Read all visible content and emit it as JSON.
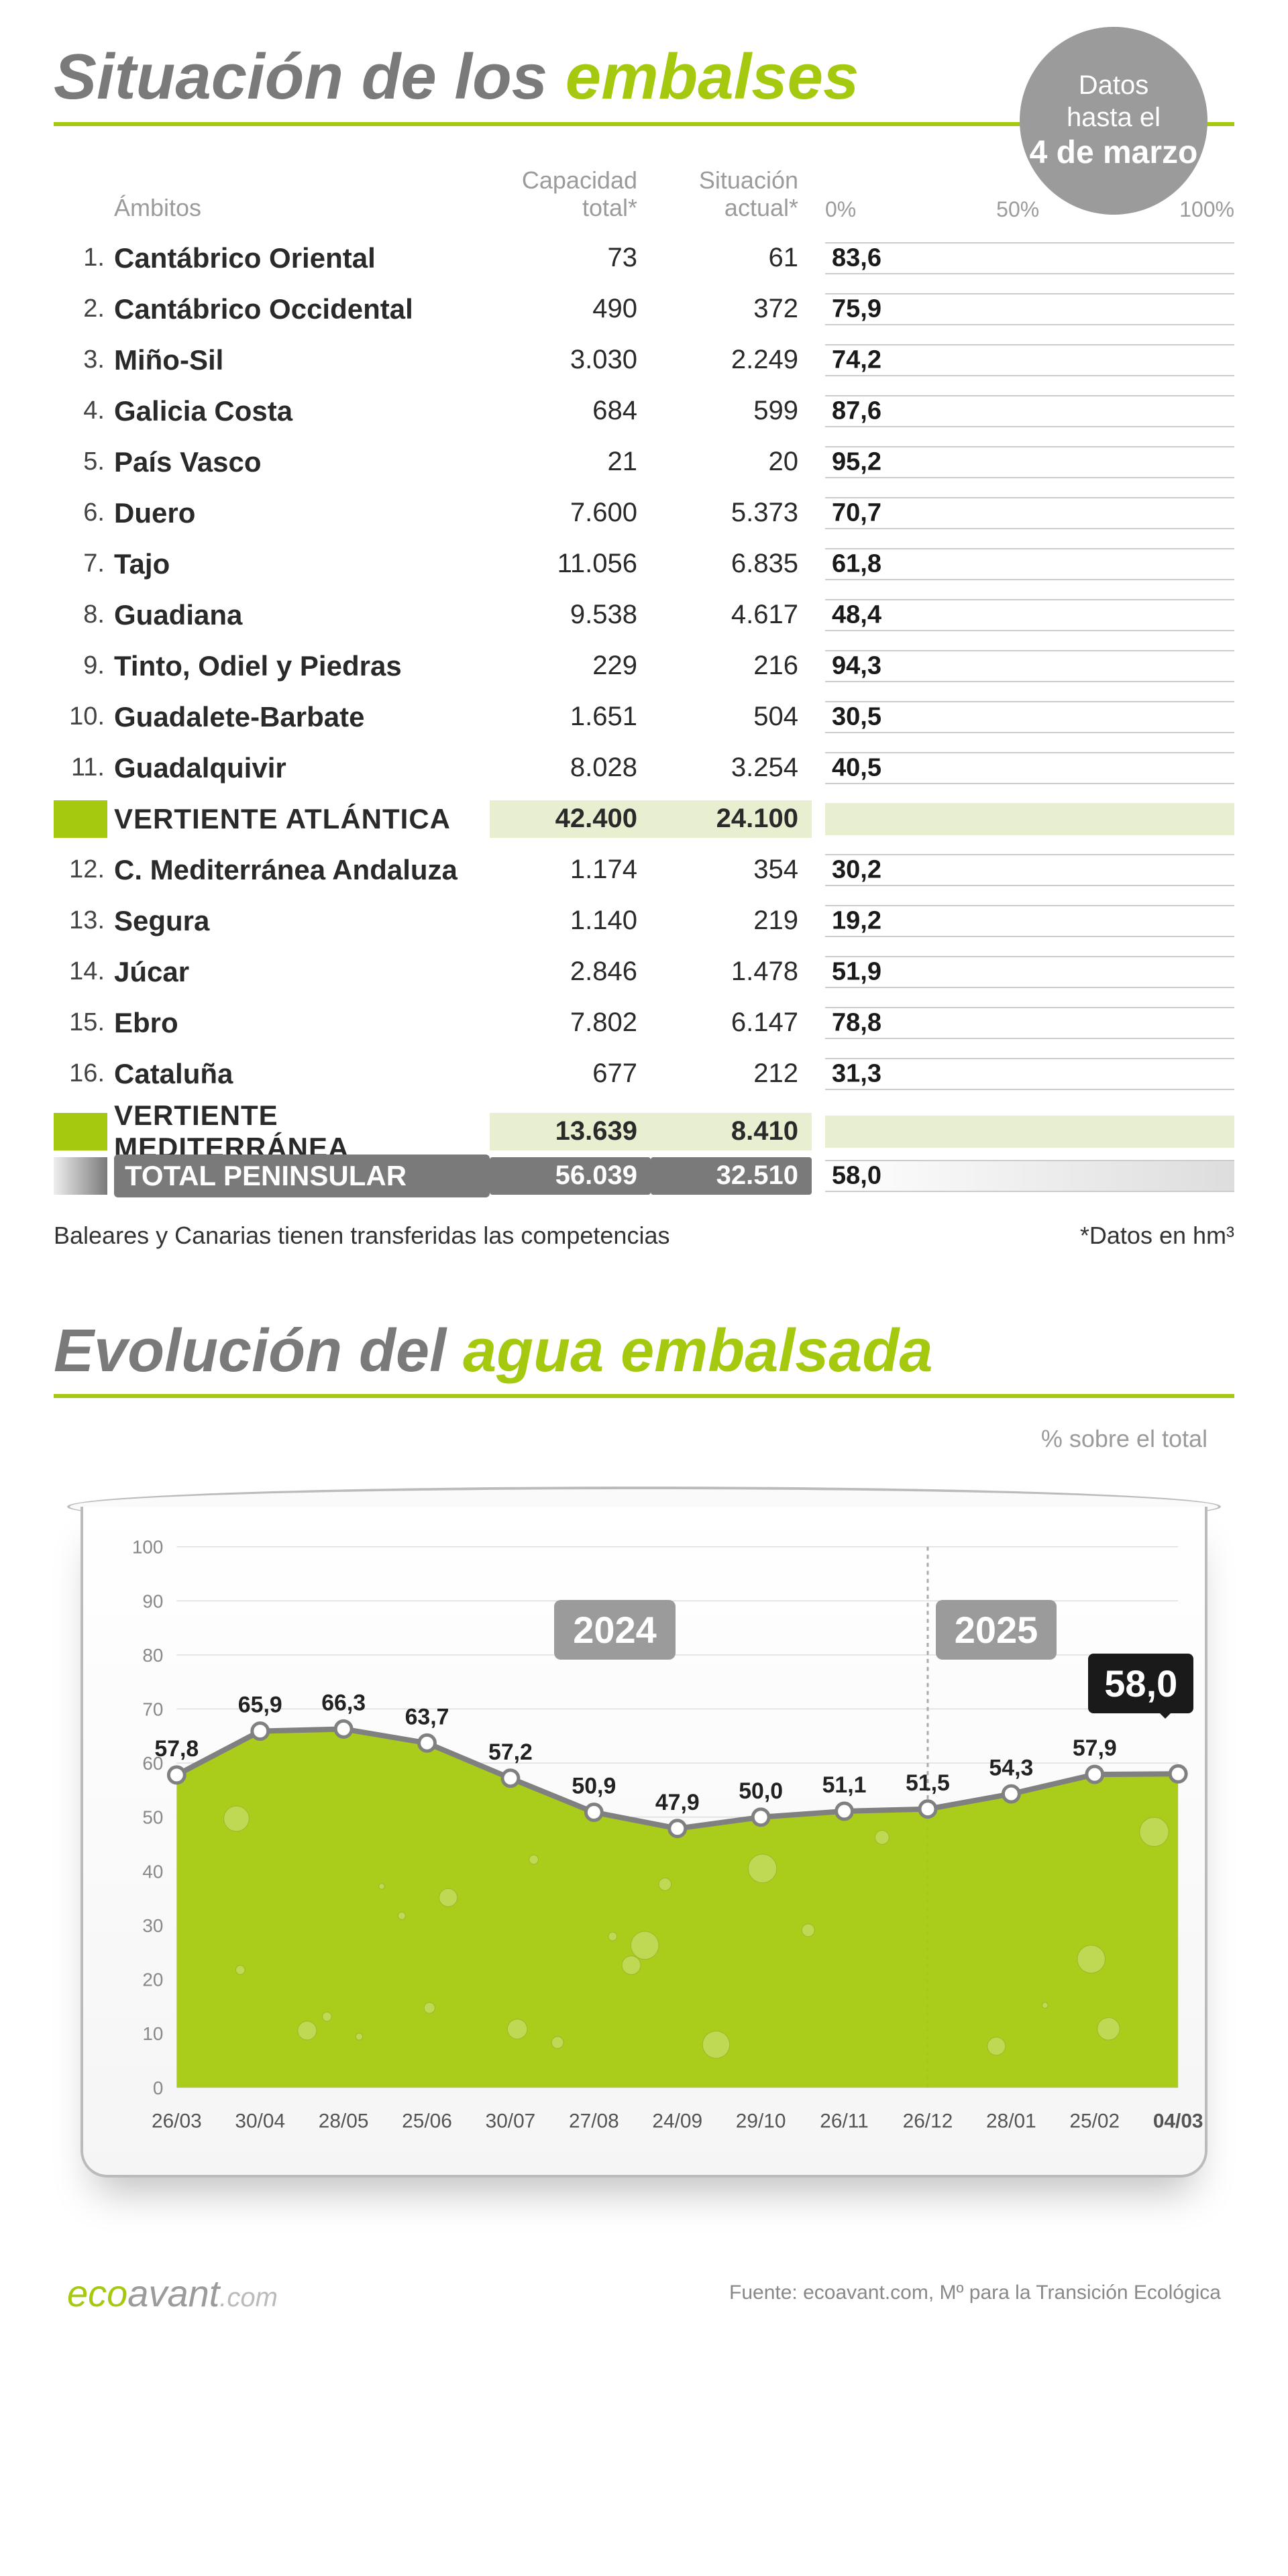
{
  "title": {
    "prefix": "Situación de los ",
    "accent": "embalses"
  },
  "badge": {
    "line1": "Datos",
    "line2": "hasta el",
    "date": "4 de marzo"
  },
  "columns": {
    "ambitos": "Ámbitos",
    "capacidad": "Capacidad total*",
    "situacion": "Situación actual*"
  },
  "axis": {
    "p0": "0%",
    "p50": "50%",
    "p100": "100%"
  },
  "rows": [
    {
      "n": "1.",
      "name": "Cantábrico Oriental",
      "cap": "73",
      "sit": "61",
      "pct": 83.6,
      "pct_label": "83,6"
    },
    {
      "n": "2.",
      "name": "Cantábrico Occidental",
      "cap": "490",
      "sit": "372",
      "pct": 75.9,
      "pct_label": "75,9"
    },
    {
      "n": "3.",
      "name": "Miño-Sil",
      "cap": "3.030",
      "sit": "2.249",
      "pct": 74.2,
      "pct_label": "74,2"
    },
    {
      "n": "4.",
      "name": "Galicia Costa",
      "cap": "684",
      "sit": "599",
      "pct": 87.6,
      "pct_label": "87,6"
    },
    {
      "n": "5.",
      "name": "País Vasco",
      "cap": "21",
      "sit": "20",
      "pct": 95.2,
      "pct_label": "95,2"
    },
    {
      "n": "6.",
      "name": "Duero",
      "cap": "7.600",
      "sit": "5.373",
      "pct": 70.7,
      "pct_label": "70,7"
    },
    {
      "n": "7.",
      "name": "Tajo",
      "cap": "11.056",
      "sit": "6.835",
      "pct": 61.8,
      "pct_label": "61,8"
    },
    {
      "n": "8.",
      "name": "Guadiana",
      "cap": "9.538",
      "sit": "4.617",
      "pct": 48.4,
      "pct_label": "48,4"
    },
    {
      "n": "9.",
      "name": "Tinto, Odiel y Piedras",
      "cap": "229",
      "sit": "216",
      "pct": 94.3,
      "pct_label": "94,3"
    },
    {
      "n": "10.",
      "name": "Guadalete-Barbate",
      "cap": "1.651",
      "sit": "504",
      "pct": 30.5,
      "pct_label": "30,5"
    },
    {
      "n": "11.",
      "name": "Guadalquivir",
      "cap": "8.028",
      "sit": "3.254",
      "pct": 40.5,
      "pct_label": "40,5"
    }
  ],
  "subtotal1": {
    "name": "VERTIENTE ATLÁNTICA",
    "cap": "42.400",
    "sit": "24.100"
  },
  "rows2": [
    {
      "n": "12.",
      "name": "C. Mediterránea Andaluza",
      "cap": "1.174",
      "sit": "354",
      "pct": 30.2,
      "pct_label": "30,2"
    },
    {
      "n": "13.",
      "name": "Segura",
      "cap": "1.140",
      "sit": "219",
      "pct": 19.2,
      "pct_label": "19,2"
    },
    {
      "n": "14.",
      "name": "Júcar",
      "cap": "2.846",
      "sit": "1.478",
      "pct": 51.9,
      "pct_label": "51,9"
    },
    {
      "n": "15.",
      "name": "Ebro",
      "cap": "7.802",
      "sit": "6.147",
      "pct": 78.8,
      "pct_label": "78,8"
    },
    {
      "n": "16.",
      "name": "Cataluña",
      "cap": "677",
      "sit": "212",
      "pct": 31.3,
      "pct_label": "31,3"
    }
  ],
  "subtotal2": {
    "name": "VERTIENTE MEDITERRÁNEA",
    "cap": "13.639",
    "sit": "8.410"
  },
  "total": {
    "name": "TOTAL PENINSULAR",
    "cap": "56.039",
    "sit": "32.510",
    "pct": 58.0,
    "pct_label": "58,0"
  },
  "footnote_left": "Baleares y Canarias tienen transferidas las competencias",
  "footnote_right": "*Datos en hm³",
  "section2_title": {
    "prefix": "Evolución del ",
    "accent": "agua embalsada"
  },
  "section2_sub": "% sobre el total",
  "linechart": {
    "ylim": [
      0,
      100
    ],
    "ytick_step": 10,
    "xlabels": [
      "26/03",
      "30/04",
      "28/05",
      "25/06",
      "30/07",
      "27/08",
      "24/09",
      "29/10",
      "26/11",
      "26/12",
      "28/01",
      "25/02",
      "04/03"
    ],
    "values": [
      57.8,
      65.9,
      66.3,
      63.7,
      57.2,
      50.9,
      47.9,
      50.0,
      51.1,
      51.5,
      54.3,
      57.9,
      58.0
    ],
    "value_labels": [
      "57,8",
      "65,9",
      "66,3",
      "63,7",
      "57,2",
      "50,9",
      "47,9",
      "50,0",
      "51,1",
      "51,5",
      "54,3",
      "57,9",
      "58,0"
    ],
    "fill_color": "#a5c90f",
    "line_color": "#808080",
    "grid_color": "#d0d0d0",
    "year_split_index": 9,
    "year1": "2024",
    "year2": "2025",
    "callout": "58,0"
  },
  "logo": {
    "eco": "eco",
    "avant": "avant",
    "dom": ".com"
  },
  "source": "Fuente: ecoavant.com, Mº para la Transición Ecológica",
  "colors": {
    "accent": "#a5c90f",
    "grey": "#9b9b9b",
    "dark": "#2a2a2a"
  }
}
